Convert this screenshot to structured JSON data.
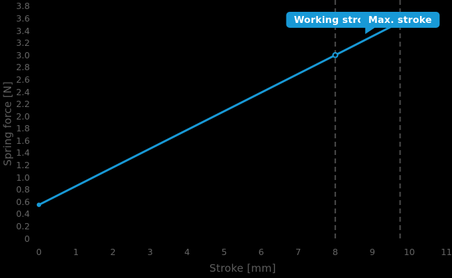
{
  "chart_data": {
    "type": "line",
    "title": "",
    "xlabel": "Stroke [mm]",
    "ylabel": "Spring force [N]",
    "xlim": [
      0,
      11
    ],
    "ylim": [
      0,
      3.8
    ],
    "grid": false,
    "legend_position": "none",
    "x_ticks": [
      "0",
      "1",
      "2",
      "3",
      "4",
      "5",
      "6",
      "7",
      "8",
      "9",
      "10",
      "11"
    ],
    "y_ticks": [
      "0",
      "0.2",
      "0.4",
      "0.6",
      "0.8",
      "1.0",
      "1.2",
      "1.4",
      "1.6",
      "1.8",
      "2.0",
      "2.2",
      "2.4",
      "2.6",
      "2.8",
      "3.0",
      "3.2",
      "3.4",
      "3.6",
      "3.8"
    ],
    "series": [
      {
        "name": "spring-force-line",
        "x": [
          0,
          8,
          9.75
        ],
        "y": [
          0.55,
          3.0,
          3.54
        ]
      }
    ],
    "markers": [
      {
        "x": 0,
        "y": 0.55,
        "style": "filled"
      },
      {
        "x": 8,
        "y": 3.0,
        "style": "open"
      }
    ],
    "reference_lines": [
      {
        "label": "Working stroke",
        "x": 8,
        "tail": false
      },
      {
        "label": "Max. stroke",
        "x": 9.75,
        "tail": true
      }
    ],
    "colors": {
      "background": "#000000",
      "line": "#1899d6",
      "badge_bg": "#1899d6",
      "badge_text": "#ffffff",
      "tick_text": "#646464",
      "axis_title_text": "#5d5d5d",
      "dashed_line": "#4c4c4c",
      "open_marker_fill": "#000000"
    }
  }
}
